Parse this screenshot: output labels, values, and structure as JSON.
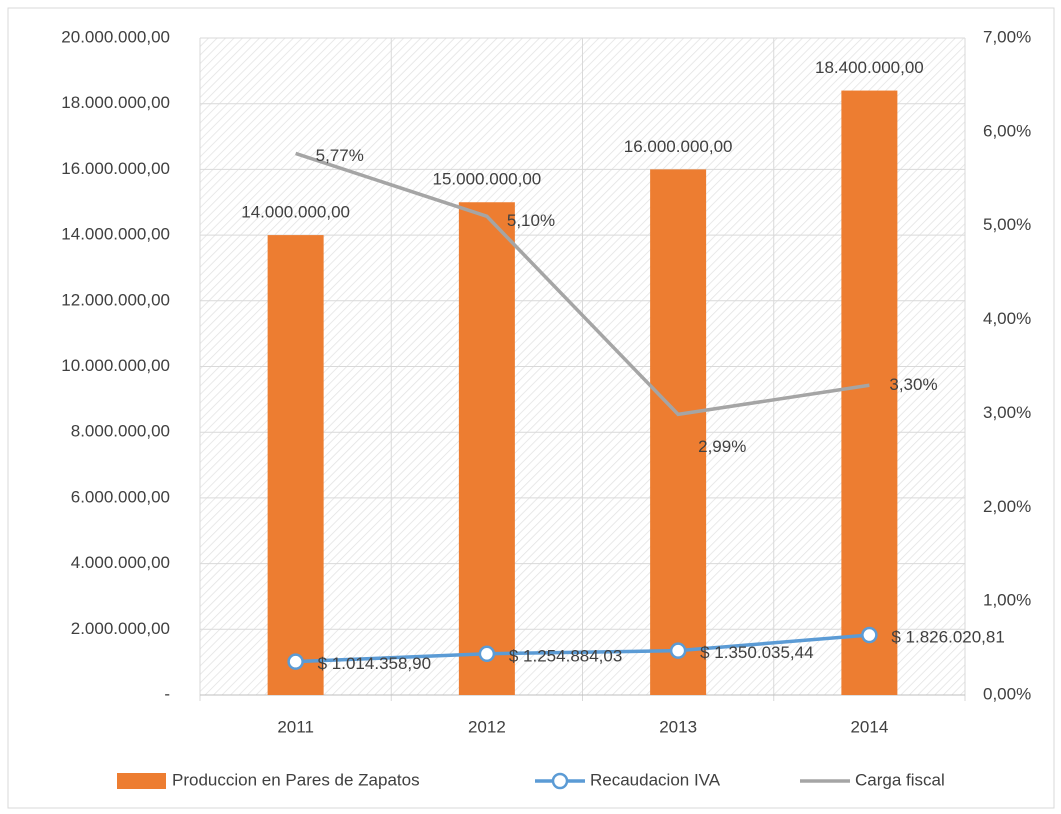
{
  "chart_data": {
    "type": "bar_line",
    "categories": [
      "2011",
      "2012",
      "2013",
      "2014"
    ],
    "series": [
      {
        "name": "Produccion en Pares de Zapatos",
        "type": "bar",
        "color": "#ED7D31",
        "axis": "y",
        "values": [
          14000000,
          15000000,
          16000000,
          18400000
        ],
        "value_labels": [
          "14.000.000,00",
          "15.000.000,00",
          "16.000.000,00",
          "18.400.000,00"
        ]
      },
      {
        "name": "Recaudacion IVA",
        "type": "line",
        "color": "#5B9BD5",
        "axis": "y",
        "markers": true,
        "values": [
          1014358.9,
          1254884.03,
          1350035.44,
          1826020.81
        ],
        "value_labels": [
          "$ 1.014.358,90",
          "$ 1.254.884,03",
          "$ 1.350.035,44",
          "$ 1.826.020,81"
        ]
      },
      {
        "name": "Carga fiscal",
        "type": "line",
        "color": "#A5A5A5",
        "axis": "y2",
        "markers": false,
        "values": [
          5.77,
          5.1,
          2.99,
          3.3
        ],
        "value_labels": [
          "5,77%",
          "5,10%",
          "2,99%",
          "3,30%"
        ]
      }
    ],
    "ylim": [
      0,
      20000000
    ],
    "yticks": [
      {
        "value": 0,
        "label": "-"
      },
      {
        "value": 2000000,
        "label": "2.000.000,00"
      },
      {
        "value": 4000000,
        "label": "4.000.000,00"
      },
      {
        "value": 6000000,
        "label": "6.000.000,00"
      },
      {
        "value": 8000000,
        "label": "8.000.000,00"
      },
      {
        "value": 10000000,
        "label": "10.000.000,00"
      },
      {
        "value": 12000000,
        "label": "12.000.000,00"
      },
      {
        "value": 14000000,
        "label": "14.000.000,00"
      },
      {
        "value": 16000000,
        "label": "16.000.000,00"
      },
      {
        "value": 18000000,
        "label": "18.000.000,00"
      },
      {
        "value": 20000000,
        "label": "20.000.000,00"
      }
    ],
    "y2lim": [
      0,
      7
    ],
    "y2ticks": [
      {
        "value": 0,
        "label": "0,00%"
      },
      {
        "value": 1,
        "label": "1,00%"
      },
      {
        "value": 2,
        "label": "2,00%"
      },
      {
        "value": 3,
        "label": "3,00%"
      },
      {
        "value": 4,
        "label": "4,00%"
      },
      {
        "value": 5,
        "label": "5,00%"
      },
      {
        "value": 6,
        "label": "6,00%"
      },
      {
        "value": 7,
        "label": "7,00%"
      }
    ],
    "grid": true,
    "legend": "bottom"
  }
}
